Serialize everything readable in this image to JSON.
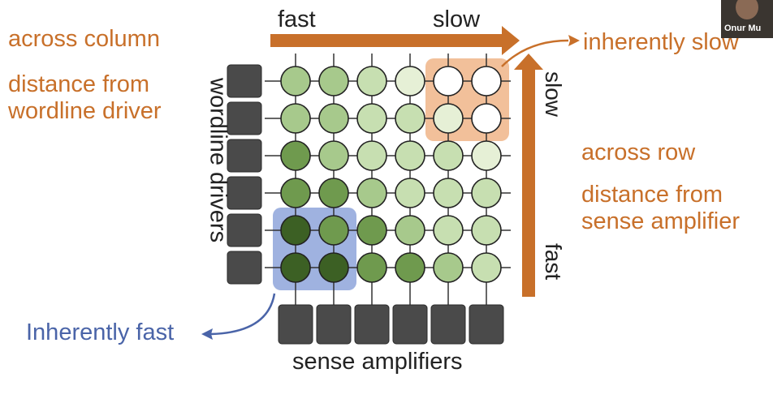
{
  "labels": {
    "across_column": "across column",
    "distance_wordline": "distance from\nwordline driver",
    "fast_top": "fast",
    "slow_top": "slow",
    "inherently_slow": "inherently slow",
    "slow_side": "slow",
    "across_row": "across row",
    "distance_sense": "distance from\nsense amplifier",
    "fast_side": "fast",
    "wordline_drivers": "wordline drivers",
    "inherently_fast": "Inherently fast",
    "sense_amplifiers": "sense amplifiers"
  },
  "presenter": {
    "name": "Onur Mu"
  },
  "colors": {
    "orange": "#c8702a",
    "blue": "#4a64a8",
    "driver_gray": "#4a4a4a",
    "slow_region": "#f2c09a",
    "fast_region": "#9fb2e0",
    "cell_shades": [
      "#ffffff",
      "#e6f0d6",
      "#c7dfb1",
      "#a7c98c",
      "#6f9a4e",
      "#3c6024"
    ]
  },
  "grid": {
    "rows": 6,
    "cols": 6,
    "cell_levels": [
      [
        3,
        3,
        2,
        1,
        0,
        0
      ],
      [
        3,
        3,
        2,
        2,
        1,
        0
      ],
      [
        4,
        3,
        2,
        2,
        2,
        1
      ],
      [
        4,
        4,
        3,
        2,
        2,
        2
      ],
      [
        5,
        4,
        4,
        3,
        2,
        2
      ],
      [
        5,
        5,
        4,
        4,
        3,
        2
      ]
    ],
    "slow_region": {
      "row_start": 0,
      "row_end": 1,
      "col_start": 4,
      "col_end": 5
    },
    "fast_region": {
      "row_start": 4,
      "row_end": 5,
      "col_start": 0,
      "col_end": 1
    }
  }
}
